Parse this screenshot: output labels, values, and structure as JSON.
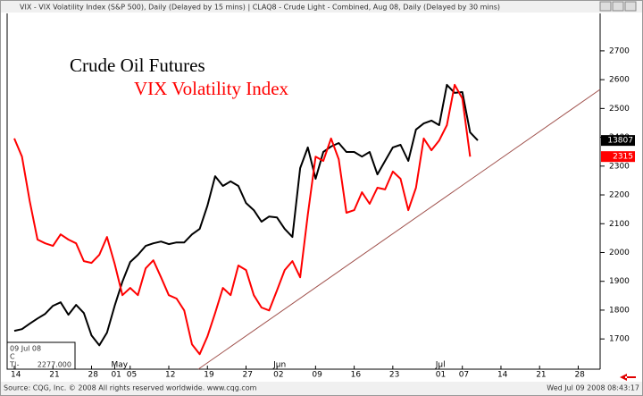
{
  "header": "VIX - VIX Volatility Index (S&P 500), Daily (Delayed by 15 mins)   |   CLAQ8 - Crude Light - Combined, Aug 08, Daily (Delayed by 30 mins)",
  "footer_left": "Source: CQG, Inc. © 2008 All rights reserved worldwide. www.cqg.com",
  "footer_right": "Wed Jul 09 2008 08:43:17",
  "info_box": [
    "09 Jul 08",
    "C",
    "T|-        2277.000"
  ],
  "chart_data": {
    "type": "line",
    "categories": [
      "14",
      null,
      null,
      null,
      null,
      "21",
      null,
      null,
      null,
      null,
      "28",
      null,
      null,
      "01",
      null,
      "05",
      null,
      null,
      null,
      null,
      "12",
      null,
      null,
      null,
      null,
      "19",
      null,
      null,
      null,
      null,
      "27",
      null,
      null,
      null,
      "02",
      null,
      null,
      null,
      null,
      "09",
      null,
      null,
      null,
      null,
      "16",
      null,
      null,
      null,
      null,
      "23",
      null,
      null,
      null,
      null,
      null,
      "01",
      null,
      null,
      "07",
      null,
      null,
      null,
      null,
      "14",
      null,
      null,
      null,
      null,
      "21",
      null,
      null,
      null,
      null,
      "28",
      null,
      null,
      null
    ],
    "month_labels": [
      null,
      null,
      null,
      null,
      null,
      null,
      null,
      null,
      null,
      null,
      null,
      null,
      null,
      "May",
      null,
      null,
      null,
      null,
      null,
      null,
      null,
      null,
      null,
      null,
      null,
      null,
      null,
      null,
      null,
      null,
      null,
      null,
      null,
      null,
      "Jun",
      null,
      null,
      null,
      null,
      null,
      null,
      null,
      null,
      null,
      null,
      null,
      null,
      null,
      null,
      null,
      null,
      null,
      null,
      null,
      null,
      "Jul",
      null,
      null,
      null,
      null,
      null,
      null,
      null,
      null,
      null,
      null,
      null,
      null,
      null,
      null,
      null,
      null,
      null,
      null,
      null,
      null,
      null
    ],
    "series": [
      {
        "name": "Crude Oil Futures",
        "color": "#000000",
        "last_label": "13807",
        "values": [
          1728,
          1734,
          1753,
          1771,
          1787,
          1815,
          1827,
          1784,
          1818,
          1790,
          1712,
          1678,
          1722,
          1815,
          1899,
          1967,
          1992,
          2023,
          2032,
          2038,
          2029,
          2035,
          2035,
          2063,
          2082,
          2163,
          2265,
          2231,
          2247,
          2231,
          2172,
          2147,
          2107,
          2125,
          2122,
          2082,
          2054,
          2293,
          2365,
          2256,
          2349,
          2368,
          2380,
          2349,
          2349,
          2333,
          2349,
          2271,
          2318,
          2365,
          2374,
          2318,
          2427,
          2448,
          2458,
          2442,
          2582,
          2554,
          2557,
          2417,
          2389,
          null,
          null,
          null,
          null,
          null,
          null,
          null,
          null,
          null,
          null,
          null,
          null,
          null,
          null,
          null,
          null
        ]
      },
      {
        "name": "VIX Volatility Index",
        "color": "#ff0000",
        "last_label": "2315",
        "values": [
          2396,
          2333,
          2178,
          2045,
          2032,
          2023,
          2063,
          2045,
          2032,
          1970,
          1964,
          1992,
          2054,
          1961,
          1852,
          1877,
          1852,
          1945,
          1973,
          1914,
          1852,
          1840,
          1799,
          1681,
          1647,
          1709,
          1790,
          1877,
          1852,
          1955,
          1939,
          1852,
          1809,
          1799,
          1868,
          1939,
          1970,
          1914,
          2132,
          2333,
          2318,
          2396,
          2324,
          2138,
          2147,
          2209,
          2169,
          2225,
          2219,
          2281,
          2256,
          2147,
          2225,
          2396,
          2355,
          2389,
          2442,
          2582,
          2535,
          2333,
          null,
          null,
          null,
          null,
          null,
          null,
          null,
          null,
          null,
          null,
          null,
          null,
          null,
          null,
          null,
          null,
          null
        ]
      }
    ],
    "ylim": [
      1595,
      2830
    ],
    "yticks": [
      1700,
      1800,
      1900,
      2000,
      2100,
      2200,
      2300,
      2400,
      2500,
      2600,
      2700
    ],
    "grid": false
  }
}
